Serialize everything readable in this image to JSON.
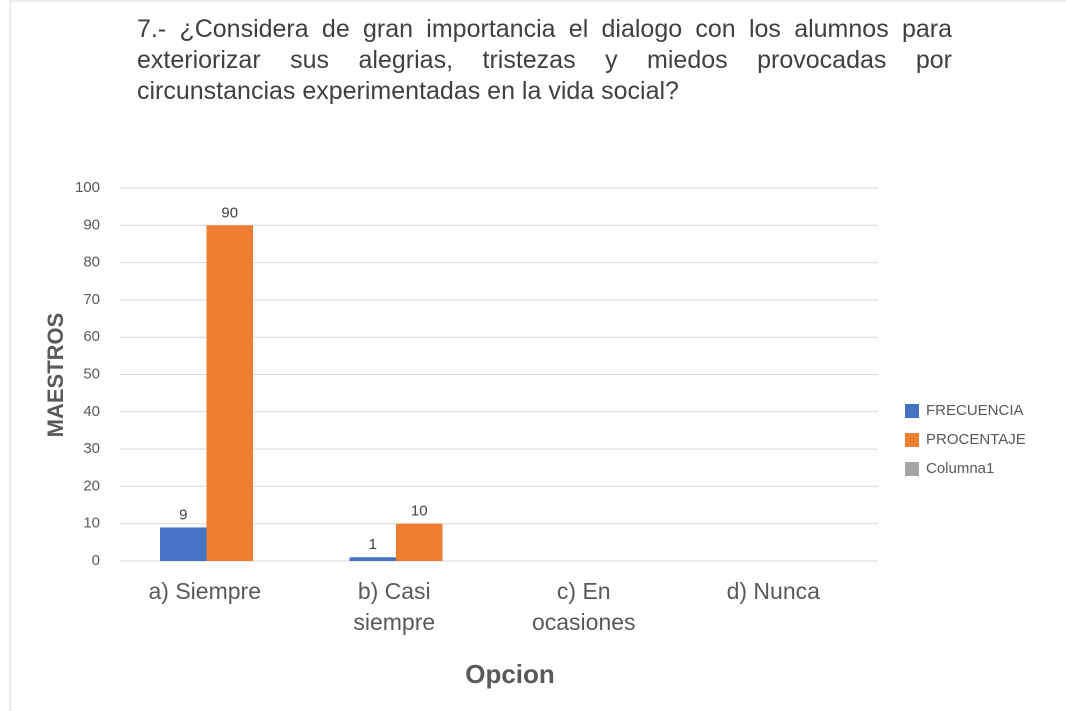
{
  "chart_data": {
    "type": "bar",
    "title": "7.- ¿Considera de gran importancia el dialogo con los alumnos para exteriorizar sus alegrias, tristezas y miedos provocadas por circunstancias experimentadas en la vida social?",
    "x_label": "Opcion",
    "y_label": "MAESTROS",
    "categories": [
      "a) Siempre",
      "b) Casi siempre",
      "c) En ocasiones",
      "d) Nunca"
    ],
    "series": [
      {
        "name": "FRECUENCIA",
        "color": "#4472c4",
        "values": [
          9,
          1,
          null,
          null
        ]
      },
      {
        "name": "PROCENTAJE",
        "color": "#ed7d31",
        "values": [
          90,
          10,
          null,
          null
        ]
      },
      {
        "name": "Columna1",
        "color": "#a5a5a5",
        "values": [
          null,
          null,
          null,
          null
        ]
      }
    ],
    "ylim": [
      0,
      100
    ],
    "yticks": [
      0,
      10,
      20,
      30,
      40,
      50,
      60,
      70,
      80,
      90,
      100
    ],
    "grid": true,
    "legend": "right"
  }
}
